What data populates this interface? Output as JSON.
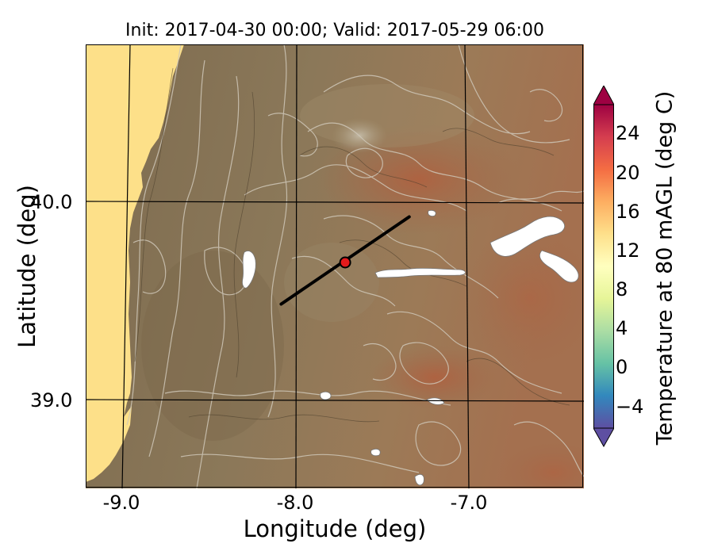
{
  "title": "Init: 2017-04-30 00:00; Valid: 2017-05-29 06:00",
  "map": {
    "xlabel": "Longitude (deg)",
    "ylabel": "Latitude (deg)",
    "x_ticks": [
      "-9.0",
      "-8.0",
      "-7.0"
    ],
    "y_ticks": [
      "40.0",
      "39.0"
    ],
    "lon_range": [
      -9.25,
      -6.37
    ],
    "lat_range": [
      38.55,
      40.79
    ],
    "transect": {
      "start": [
        -8.12,
        39.48
      ],
      "end": [
        -7.38,
        39.92
      ]
    },
    "point": {
      "lon": -7.75,
      "lat": 39.69
    },
    "colors": {
      "ocean": "#fde089",
      "land_low": "#837055",
      "land_mid": "#8f7c5c",
      "land_high": "#a86e4f",
      "contour": "#cfc7b8",
      "point_fill": "#e41a1c",
      "transect": "#000000"
    }
  },
  "colorbar": {
    "label": "Temperature at 80 mAGL (deg C)",
    "ticks": [
      "24",
      "20",
      "16",
      "12",
      "8",
      "4",
      "0",
      "−4"
    ],
    "range": [
      -6,
      26
    ],
    "colors": [
      "#5e4fa2",
      "#3288bd",
      "#66c2a5",
      "#abdda4",
      "#e6f598",
      "#ffffbf",
      "#fee08b",
      "#fdae61",
      "#f46d43",
      "#d53e4f",
      "#9e0142"
    ]
  }
}
